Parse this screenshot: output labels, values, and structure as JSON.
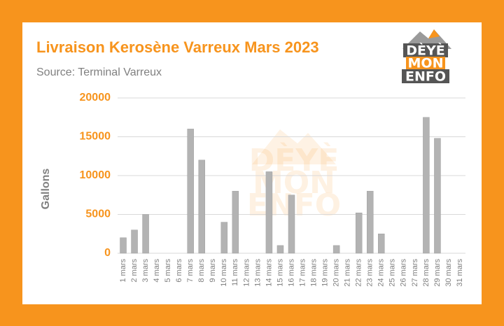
{
  "chart_data": {
    "type": "bar",
    "title": "Livraison Kerosène Varreux Mars 2023",
    "subtitle": "Source: Terminal Varreux",
    "y_label": "Gallons",
    "logo": [
      "DÈYÈ",
      "MON",
      "ENFO"
    ],
    "categories": [
      "1 mars",
      "2 mars",
      "3 mars",
      "4 mars",
      "5 mars",
      "6 mars",
      "7 mars",
      "8 mars",
      "9 mars",
      "10 mars",
      "11 mars",
      "12 mars",
      "13 mars",
      "14 mars",
      "15 mars",
      "16 mars",
      "17 mars",
      "18 mars",
      "19 mars",
      "20 mars",
      "21 mars",
      "22 mars",
      "23 mars",
      "24 mars",
      "25 mars",
      "26 mars",
      "27 mars",
      "28 mars",
      "29 mars",
      "30 mars",
      "31 mars"
    ],
    "values": [
      2000,
      3000,
      5000,
      0,
      0,
      0,
      16000,
      12000,
      0,
      4000,
      8000,
      0,
      0,
      10500,
      1000,
      7500,
      0,
      0,
      0,
      1000,
      0,
      5200,
      8000,
      2500,
      0,
      0,
      0,
      17500,
      14800,
      0,
      0
    ],
    "color": "#b3b3b3",
    "ylim": [
      0,
      20000
    ],
    "yticks": [
      0,
      5000,
      10000,
      15000,
      20000
    ],
    "grid": true
  }
}
